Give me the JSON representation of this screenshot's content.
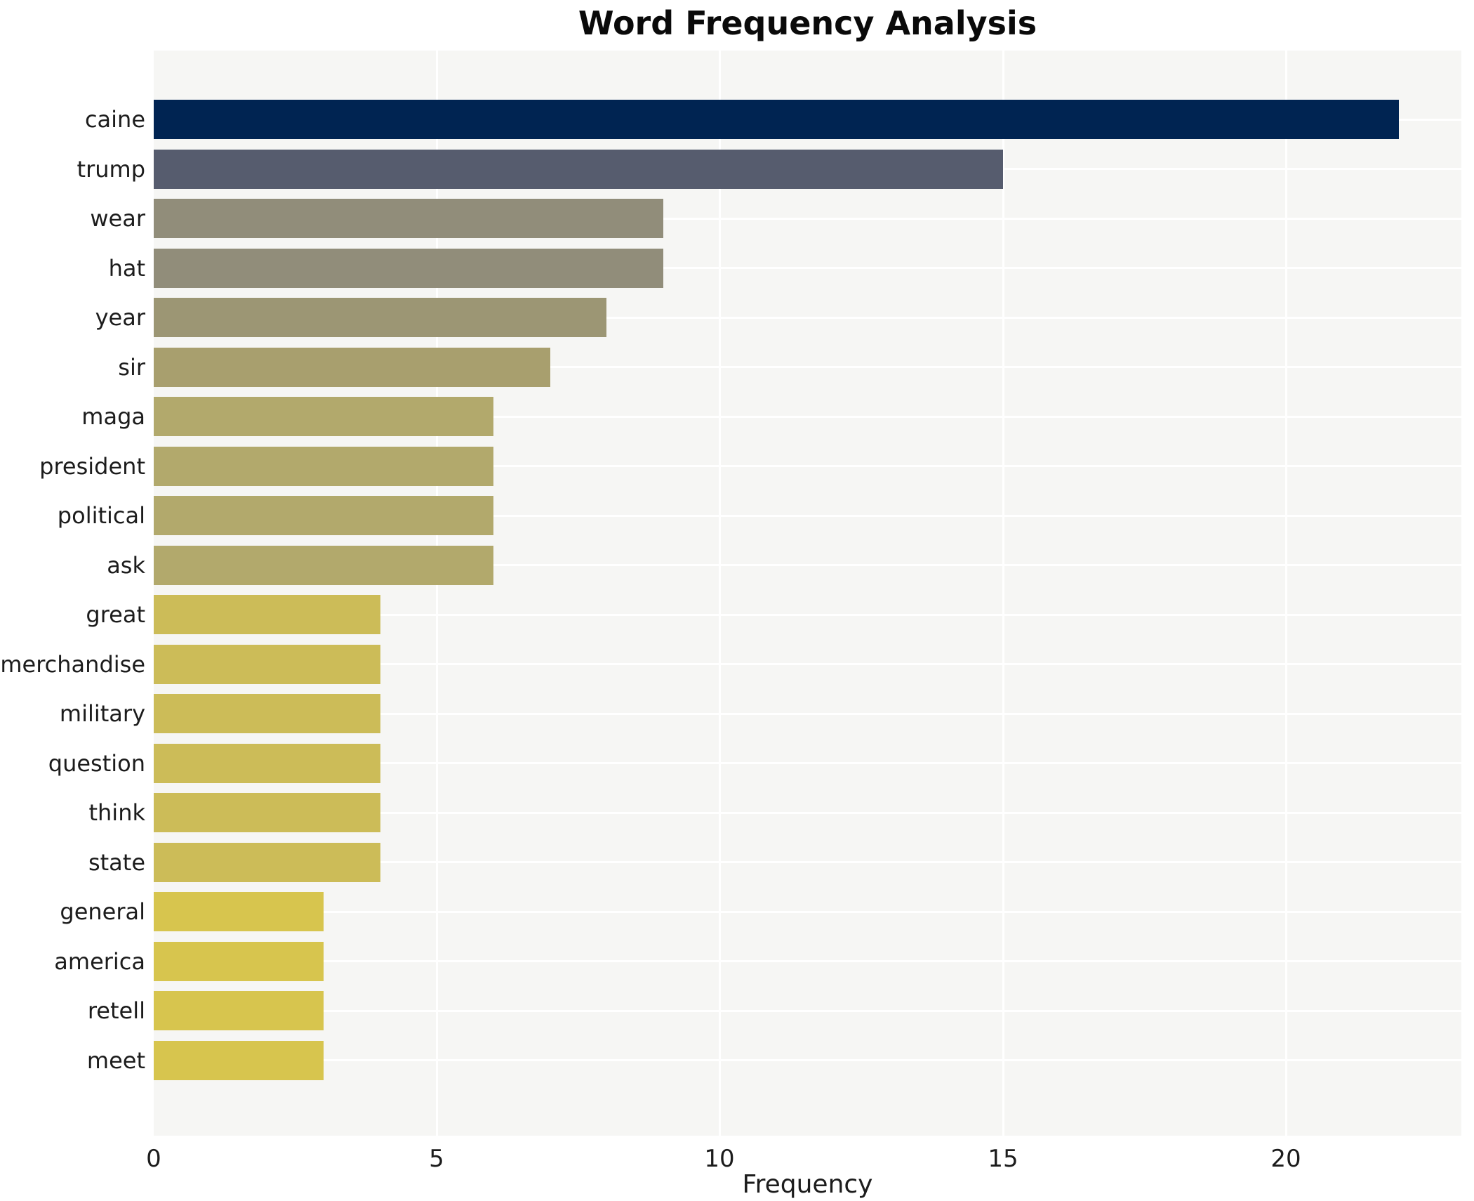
{
  "chart_data": {
    "type": "bar",
    "orientation": "horizontal",
    "title": "Word Frequency Analysis",
    "xlabel": "Frequency",
    "ylabel": "",
    "categories": [
      "caine",
      "trump",
      "wear",
      "hat",
      "year",
      "sir",
      "maga",
      "president",
      "political",
      "ask",
      "great",
      "merchandise",
      "military",
      "question",
      "think",
      "state",
      "general",
      "america",
      "retell",
      "meet"
    ],
    "values": [
      22,
      15,
      9,
      9,
      8,
      7,
      6,
      6,
      6,
      6,
      4,
      4,
      4,
      4,
      4,
      4,
      3,
      3,
      3,
      3
    ],
    "bar_colors": [
      "#002452",
      "#565c6e",
      "#918d7a",
      "#918d7a",
      "#9c9674",
      "#a89f6e",
      "#b2a96c",
      "#b2a96c",
      "#b2a96c",
      "#b2a96c",
      "#ccbc58",
      "#ccbc58",
      "#ccbc58",
      "#ccbc58",
      "#ccbc58",
      "#ccbc58",
      "#d7c54e",
      "#d7c54e",
      "#d7c54e",
      "#d7c54e"
    ],
    "xlim": [
      0,
      23.1
    ],
    "xticks": [
      0,
      5,
      10,
      15,
      20
    ],
    "grid": true,
    "legend": false,
    "plot_background_color": "#f6f6f4",
    "gridline_color": "#ffffff",
    "title_color": "#0a0a0a",
    "tick_label_color": "#1c1c1c"
  }
}
